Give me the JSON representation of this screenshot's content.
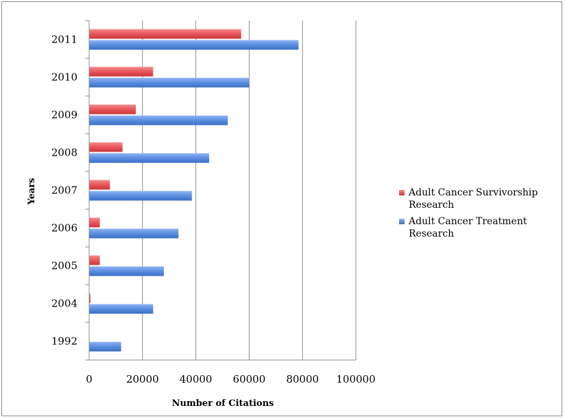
{
  "chart_data": {
    "type": "bar",
    "orientation": "horizontal",
    "title": "",
    "xlabel": "Number of Citations",
    "ylabel": "Years",
    "categories": [
      "2011",
      "2010",
      "2009",
      "2008",
      "2007",
      "2006",
      "2005",
      "2004",
      "1992"
    ],
    "series": [
      {
        "name": "Adult Cancer Survivorship Research",
        "color": "#e8555a",
        "values": [
          57000,
          24000,
          17500,
          12500,
          7800,
          4000,
          4000,
          500,
          0
        ]
      },
      {
        "name": "Adult Cancer Treatment Research",
        "color": "#5b8ee0",
        "values": [
          78500,
          60000,
          52000,
          45000,
          38500,
          33500,
          28000,
          24000,
          12000
        ]
      }
    ],
    "xlim": [
      0,
      100000
    ],
    "xticks": [
      "0",
      "20000",
      "40000",
      "60000",
      "80000",
      "100000"
    ],
    "grid": "vertical gridlines at major ticks",
    "legend_position": "right"
  }
}
